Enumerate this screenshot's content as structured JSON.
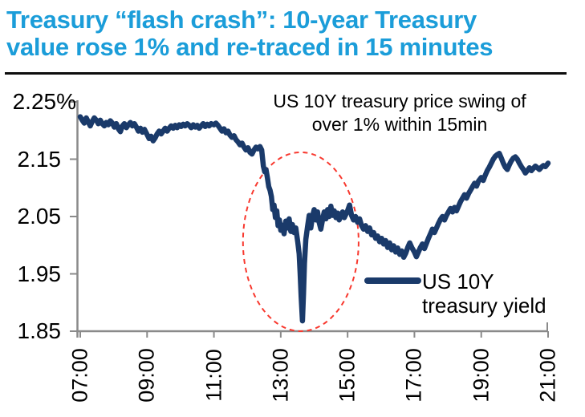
{
  "title": {
    "line1": "Treasury “flash crash”: 10-year Treasury",
    "line2": "value rose 1% and re-traced in 15 minutes",
    "color": "#1b9dd9"
  },
  "chart_data": {
    "type": "line",
    "annotation": {
      "line1": "US 10Y treasury price swing of",
      "line2": "over 1% within 15min"
    },
    "x_tick_labels": [
      "07:00",
      "09:00",
      "11:00",
      "13:00",
      "15:00",
      "17:00",
      "19:00",
      "21:00"
    ],
    "y_tick_labels": [
      "2.25%",
      "2.15",
      "2.05",
      "1.95",
      "1.85"
    ],
    "y_tick_values": [
      2.25,
      2.15,
      2.05,
      1.95,
      1.85
    ],
    "xlim_hours": [
      7,
      21
    ],
    "ylim": [
      1.85,
      2.25
    ],
    "grid": false,
    "legend": {
      "label_line1": "US 10Y",
      "label_line2": "treasury yield",
      "position": "right-middle"
    },
    "colors": {
      "series": "#1a3a6a",
      "axis": "#8a8a8a",
      "highlight": "#f8382e",
      "text": "#000000"
    },
    "highlight": {
      "shape": "dashed-ellipse",
      "desc": "flash-crash region circled",
      "center_time": 13.6,
      "center_value": 2.006,
      "radius_hours": 1.73,
      "radius_value": 0.156
    },
    "series": [
      {
        "name": "US 10Y treasury yield",
        "points": [
          [
            7.0,
            2.224
          ],
          [
            7.06,
            2.218
          ],
          [
            7.12,
            2.213
          ],
          [
            7.18,
            2.222
          ],
          [
            7.24,
            2.215
          ],
          [
            7.3,
            2.208
          ],
          [
            7.36,
            2.216
          ],
          [
            7.42,
            2.222
          ],
          [
            7.48,
            2.218
          ],
          [
            7.54,
            2.212
          ],
          [
            7.6,
            2.218
          ],
          [
            7.66,
            2.212
          ],
          [
            7.72,
            2.208
          ],
          [
            7.78,
            2.214
          ],
          [
            7.84,
            2.21
          ],
          [
            7.9,
            2.217
          ],
          [
            7.96,
            2.213
          ],
          [
            8.02,
            2.206
          ],
          [
            8.08,
            2.212
          ],
          [
            8.14,
            2.203
          ],
          [
            8.2,
            2.198
          ],
          [
            8.26,
            2.208
          ],
          [
            8.32,
            2.212
          ],
          [
            8.38,
            2.205
          ],
          [
            8.44,
            2.21
          ],
          [
            8.5,
            2.214
          ],
          [
            8.56,
            2.208
          ],
          [
            8.62,
            2.212
          ],
          [
            8.68,
            2.206
          ],
          [
            8.74,
            2.199
          ],
          [
            8.8,
            2.204
          ],
          [
            8.86,
            2.197
          ],
          [
            8.92,
            2.202
          ],
          [
            9.0,
            2.193
          ],
          [
            9.06,
            2.186
          ],
          [
            9.12,
            2.19
          ],
          [
            9.18,
            2.182
          ],
          [
            9.24,
            2.187
          ],
          [
            9.3,
            2.194
          ],
          [
            9.36,
            2.199
          ],
          [
            9.42,
            2.194
          ],
          [
            9.48,
            2.199
          ],
          [
            9.54,
            2.204
          ],
          [
            9.6,
            2.199
          ],
          [
            9.66,
            2.204
          ],
          [
            9.72,
            2.208
          ],
          [
            9.78,
            2.204
          ],
          [
            9.84,
            2.209
          ],
          [
            9.9,
            2.205
          ],
          [
            9.96,
            2.21
          ],
          [
            10.02,
            2.207
          ],
          [
            10.08,
            2.211
          ],
          [
            10.14,
            2.208
          ],
          [
            10.2,
            2.212
          ],
          [
            10.26,
            2.209
          ],
          [
            10.32,
            2.205
          ],
          [
            10.38,
            2.21
          ],
          [
            10.44,
            2.206
          ],
          [
            10.5,
            2.209
          ],
          [
            10.56,
            2.204
          ],
          [
            10.62,
            2.208
          ],
          [
            10.68,
            2.212
          ],
          [
            10.74,
            2.207
          ],
          [
            10.8,
            2.211
          ],
          [
            10.86,
            2.208
          ],
          [
            10.92,
            2.212
          ],
          [
            11.0,
            2.21
          ],
          [
            11.06,
            2.213
          ],
          [
            11.12,
            2.209
          ],
          [
            11.18,
            2.204
          ],
          [
            11.24,
            2.199
          ],
          [
            11.3,
            2.203
          ],
          [
            11.36,
            2.196
          ],
          [
            11.42,
            2.199
          ],
          [
            11.48,
            2.192
          ],
          [
            11.54,
            2.188
          ],
          [
            11.6,
            2.191
          ],
          [
            11.66,
            2.184
          ],
          [
            11.72,
            2.18
          ],
          [
            11.78,
            2.175
          ],
          [
            11.84,
            2.178
          ],
          [
            11.9,
            2.171
          ],
          [
            11.96,
            2.166
          ],
          [
            12.02,
            2.17
          ],
          [
            12.08,
            2.162
          ],
          [
            12.14,
            2.159
          ],
          [
            12.2,
            2.166
          ],
          [
            12.26,
            2.171
          ],
          [
            12.32,
            2.168
          ],
          [
            12.38,
            2.172
          ],
          [
            12.43,
            2.166
          ],
          [
            12.48,
            2.138
          ],
          [
            12.52,
            2.128
          ],
          [
            12.56,
            2.132
          ],
          [
            12.6,
            2.118
          ],
          [
            12.64,
            2.102
          ],
          [
            12.68,
            2.096
          ],
          [
            12.72,
            2.085
          ],
          [
            12.76,
            2.062
          ],
          [
            12.8,
            2.07
          ],
          [
            12.84,
            2.048
          ],
          [
            12.88,
            2.06
          ],
          [
            12.92,
            2.034
          ],
          [
            12.96,
            2.044
          ],
          [
            13.0,
            2.026
          ],
          [
            13.05,
            2.035
          ],
          [
            13.1,
            2.02
          ],
          [
            13.15,
            2.042
          ],
          [
            13.2,
            2.03
          ],
          [
            13.25,
            2.046
          ],
          [
            13.3,
            2.024
          ],
          [
            13.35,
            2.036
          ],
          [
            13.4,
            2.022
          ],
          [
            13.45,
            2.03
          ],
          [
            13.51,
            2.005
          ],
          [
            13.55,
            1.985
          ],
          [
            13.58,
            1.952
          ],
          [
            13.61,
            1.91
          ],
          [
            13.65,
            1.868
          ],
          [
            13.68,
            1.915
          ],
          [
            13.71,
            1.968
          ],
          [
            13.75,
            2.01
          ],
          [
            13.8,
            2.032
          ],
          [
            13.85,
            2.052
          ],
          [
            13.9,
            2.03
          ],
          [
            13.95,
            2.05
          ],
          [
            14.0,
            2.062
          ],
          [
            14.05,
            2.044
          ],
          [
            14.1,
            2.058
          ],
          [
            14.15,
            2.04
          ],
          [
            14.2,
            2.028
          ],
          [
            14.25,
            2.044
          ],
          [
            14.3,
            2.058
          ],
          [
            14.35,
            2.046
          ],
          [
            14.4,
            2.062
          ],
          [
            14.45,
            2.05
          ],
          [
            14.5,
            2.068
          ],
          [
            14.55,
            2.052
          ],
          [
            14.6,
            2.06
          ],
          [
            14.65,
            2.048
          ],
          [
            14.7,
            2.056
          ],
          [
            14.75,
            2.044
          ],
          [
            14.8,
            2.052
          ],
          [
            14.85,
            2.058
          ],
          [
            14.9,
            2.048
          ],
          [
            14.95,
            2.054
          ],
          [
            15.0,
            2.06
          ],
          [
            15.06,
            2.07
          ],
          [
            15.12,
            2.052
          ],
          [
            15.18,
            2.044
          ],
          [
            15.24,
            2.05
          ],
          [
            15.3,
            2.04
          ],
          [
            15.36,
            2.046
          ],
          [
            15.42,
            2.034
          ],
          [
            15.48,
            2.028
          ],
          [
            15.54,
            2.034
          ],
          [
            15.6,
            2.024
          ],
          [
            15.66,
            2.03
          ],
          [
            15.72,
            2.018
          ],
          [
            15.78,
            2.022
          ],
          [
            15.84,
            2.012
          ],
          [
            15.9,
            2.016
          ],
          [
            15.96,
            2.006
          ],
          [
            16.02,
            2.012
          ],
          [
            16.08,
            2.002
          ],
          [
            16.14,
            2.008
          ],
          [
            16.2,
            1.996
          ],
          [
            16.26,
            2.004
          ],
          [
            16.32,
            1.992
          ],
          [
            16.38,
            1.999
          ],
          [
            16.44,
            1.988
          ],
          [
            16.5,
            1.995
          ],
          [
            16.56,
            1.984
          ],
          [
            16.62,
            1.99
          ],
          [
            16.68,
            1.979
          ],
          [
            16.74,
            1.986
          ],
          [
            16.8,
            1.996
          ],
          [
            16.86,
            2.004
          ],
          [
            16.92,
            1.996
          ],
          [
            17.0,
            1.988
          ],
          [
            17.06,
            1.98
          ],
          [
            17.12,
            1.988
          ],
          [
            17.18,
            1.996
          ],
          [
            17.24,
            2.002
          ],
          [
            17.3,
            1.994
          ],
          [
            17.36,
            2.003
          ],
          [
            17.42,
            2.012
          ],
          [
            17.48,
            2.02
          ],
          [
            17.54,
            2.028
          ],
          [
            17.6,
            2.022
          ],
          [
            17.66,
            2.03
          ],
          [
            17.72,
            2.038
          ],
          [
            17.78,
            2.045
          ],
          [
            17.84,
            2.05
          ],
          [
            17.9,
            2.044
          ],
          [
            17.96,
            2.052
          ],
          [
            18.02,
            2.058
          ],
          [
            18.08,
            2.064
          ],
          [
            18.14,
            2.058
          ],
          [
            18.2,
            2.066
          ],
          [
            18.26,
            2.06
          ],
          [
            18.32,
            2.068
          ],
          [
            18.38,
            2.076
          ],
          [
            18.44,
            2.082
          ],
          [
            18.5,
            2.088
          ],
          [
            18.56,
            2.082
          ],
          [
            18.62,
            2.09
          ],
          [
            18.68,
            2.096
          ],
          [
            18.74,
            2.102
          ],
          [
            18.8,
            2.108
          ],
          [
            18.86,
            2.103
          ],
          [
            18.92,
            2.112
          ],
          [
            19.0,
            2.118
          ],
          [
            19.06,
            2.113
          ],
          [
            19.12,
            2.122
          ],
          [
            19.18,
            2.13
          ],
          [
            19.24,
            2.136
          ],
          [
            19.3,
            2.143
          ],
          [
            19.36,
            2.15
          ],
          [
            19.42,
            2.155
          ],
          [
            19.48,
            2.158
          ],
          [
            19.54,
            2.16
          ],
          [
            19.6,
            2.152
          ],
          [
            19.66,
            2.143
          ],
          [
            19.72,
            2.136
          ],
          [
            19.78,
            2.132
          ],
          [
            19.84,
            2.14
          ],
          [
            19.9,
            2.147
          ],
          [
            19.96,
            2.152
          ],
          [
            20.02,
            2.154
          ],
          [
            20.08,
            2.15
          ],
          [
            20.14,
            2.143
          ],
          [
            20.2,
            2.137
          ],
          [
            20.26,
            2.132
          ],
          [
            20.32,
            2.126
          ],
          [
            20.38,
            2.13
          ],
          [
            20.44,
            2.135
          ],
          [
            20.5,
            2.13
          ],
          [
            20.56,
            2.134
          ],
          [
            20.62,
            2.138
          ],
          [
            20.68,
            2.135
          ],
          [
            20.74,
            2.132
          ],
          [
            20.8,
            2.136
          ],
          [
            20.86,
            2.139
          ],
          [
            20.92,
            2.137
          ],
          [
            21.0,
            2.143
          ]
        ]
      }
    ]
  }
}
